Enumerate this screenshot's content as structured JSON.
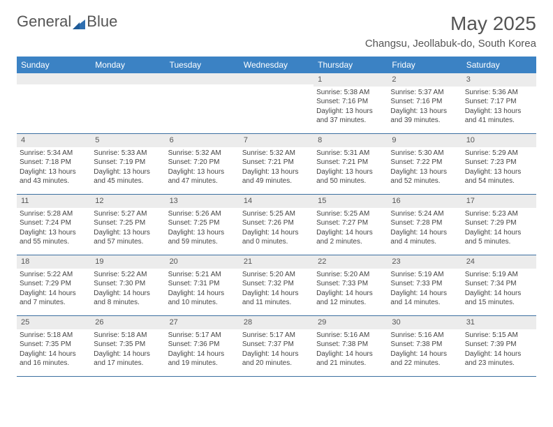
{
  "brand": {
    "part1": "General",
    "part2": "Blue"
  },
  "colors": {
    "header_bg": "#3b82c4",
    "header_text": "#ffffff",
    "daynum_bg": "#ececec",
    "week_border": "#3b6fa0",
    "text": "#444444",
    "logo_fill": "#2f6fb0"
  },
  "title": "May 2025",
  "location": "Changsu, Jeollabuk-do, South Korea",
  "weekdays": [
    "Sunday",
    "Monday",
    "Tuesday",
    "Wednesday",
    "Thursday",
    "Friday",
    "Saturday"
  ],
  "weeks": [
    [
      {
        "n": "",
        "lines": []
      },
      {
        "n": "",
        "lines": []
      },
      {
        "n": "",
        "lines": []
      },
      {
        "n": "",
        "lines": []
      },
      {
        "n": "1",
        "lines": [
          "Sunrise: 5:38 AM",
          "Sunset: 7:16 PM",
          "Daylight: 13 hours and 37 minutes."
        ]
      },
      {
        "n": "2",
        "lines": [
          "Sunrise: 5:37 AM",
          "Sunset: 7:16 PM",
          "Daylight: 13 hours and 39 minutes."
        ]
      },
      {
        "n": "3",
        "lines": [
          "Sunrise: 5:36 AM",
          "Sunset: 7:17 PM",
          "Daylight: 13 hours and 41 minutes."
        ]
      }
    ],
    [
      {
        "n": "4",
        "lines": [
          "Sunrise: 5:34 AM",
          "Sunset: 7:18 PM",
          "Daylight: 13 hours and 43 minutes."
        ]
      },
      {
        "n": "5",
        "lines": [
          "Sunrise: 5:33 AM",
          "Sunset: 7:19 PM",
          "Daylight: 13 hours and 45 minutes."
        ]
      },
      {
        "n": "6",
        "lines": [
          "Sunrise: 5:32 AM",
          "Sunset: 7:20 PM",
          "Daylight: 13 hours and 47 minutes."
        ]
      },
      {
        "n": "7",
        "lines": [
          "Sunrise: 5:32 AM",
          "Sunset: 7:21 PM",
          "Daylight: 13 hours and 49 minutes."
        ]
      },
      {
        "n": "8",
        "lines": [
          "Sunrise: 5:31 AM",
          "Sunset: 7:21 PM",
          "Daylight: 13 hours and 50 minutes."
        ]
      },
      {
        "n": "9",
        "lines": [
          "Sunrise: 5:30 AM",
          "Sunset: 7:22 PM",
          "Daylight: 13 hours and 52 minutes."
        ]
      },
      {
        "n": "10",
        "lines": [
          "Sunrise: 5:29 AM",
          "Sunset: 7:23 PM",
          "Daylight: 13 hours and 54 minutes."
        ]
      }
    ],
    [
      {
        "n": "11",
        "lines": [
          "Sunrise: 5:28 AM",
          "Sunset: 7:24 PM",
          "Daylight: 13 hours and 55 minutes."
        ]
      },
      {
        "n": "12",
        "lines": [
          "Sunrise: 5:27 AM",
          "Sunset: 7:25 PM",
          "Daylight: 13 hours and 57 minutes."
        ]
      },
      {
        "n": "13",
        "lines": [
          "Sunrise: 5:26 AM",
          "Sunset: 7:25 PM",
          "Daylight: 13 hours and 59 minutes."
        ]
      },
      {
        "n": "14",
        "lines": [
          "Sunrise: 5:25 AM",
          "Sunset: 7:26 PM",
          "Daylight: 14 hours and 0 minutes."
        ]
      },
      {
        "n": "15",
        "lines": [
          "Sunrise: 5:25 AM",
          "Sunset: 7:27 PM",
          "Daylight: 14 hours and 2 minutes."
        ]
      },
      {
        "n": "16",
        "lines": [
          "Sunrise: 5:24 AM",
          "Sunset: 7:28 PM",
          "Daylight: 14 hours and 4 minutes."
        ]
      },
      {
        "n": "17",
        "lines": [
          "Sunrise: 5:23 AM",
          "Sunset: 7:29 PM",
          "Daylight: 14 hours and 5 minutes."
        ]
      }
    ],
    [
      {
        "n": "18",
        "lines": [
          "Sunrise: 5:22 AM",
          "Sunset: 7:29 PM",
          "Daylight: 14 hours and 7 minutes."
        ]
      },
      {
        "n": "19",
        "lines": [
          "Sunrise: 5:22 AM",
          "Sunset: 7:30 PM",
          "Daylight: 14 hours and 8 minutes."
        ]
      },
      {
        "n": "20",
        "lines": [
          "Sunrise: 5:21 AM",
          "Sunset: 7:31 PM",
          "Daylight: 14 hours and 10 minutes."
        ]
      },
      {
        "n": "21",
        "lines": [
          "Sunrise: 5:20 AM",
          "Sunset: 7:32 PM",
          "Daylight: 14 hours and 11 minutes."
        ]
      },
      {
        "n": "22",
        "lines": [
          "Sunrise: 5:20 AM",
          "Sunset: 7:33 PM",
          "Daylight: 14 hours and 12 minutes."
        ]
      },
      {
        "n": "23",
        "lines": [
          "Sunrise: 5:19 AM",
          "Sunset: 7:33 PM",
          "Daylight: 14 hours and 14 minutes."
        ]
      },
      {
        "n": "24",
        "lines": [
          "Sunrise: 5:19 AM",
          "Sunset: 7:34 PM",
          "Daylight: 14 hours and 15 minutes."
        ]
      }
    ],
    [
      {
        "n": "25",
        "lines": [
          "Sunrise: 5:18 AM",
          "Sunset: 7:35 PM",
          "Daylight: 14 hours and 16 minutes."
        ]
      },
      {
        "n": "26",
        "lines": [
          "Sunrise: 5:18 AM",
          "Sunset: 7:35 PM",
          "Daylight: 14 hours and 17 minutes."
        ]
      },
      {
        "n": "27",
        "lines": [
          "Sunrise: 5:17 AM",
          "Sunset: 7:36 PM",
          "Daylight: 14 hours and 19 minutes."
        ]
      },
      {
        "n": "28",
        "lines": [
          "Sunrise: 5:17 AM",
          "Sunset: 7:37 PM",
          "Daylight: 14 hours and 20 minutes."
        ]
      },
      {
        "n": "29",
        "lines": [
          "Sunrise: 5:16 AM",
          "Sunset: 7:38 PM",
          "Daylight: 14 hours and 21 minutes."
        ]
      },
      {
        "n": "30",
        "lines": [
          "Sunrise: 5:16 AM",
          "Sunset: 7:38 PM",
          "Daylight: 14 hours and 22 minutes."
        ]
      },
      {
        "n": "31",
        "lines": [
          "Sunrise: 5:15 AM",
          "Sunset: 7:39 PM",
          "Daylight: 14 hours and 23 minutes."
        ]
      }
    ]
  ]
}
